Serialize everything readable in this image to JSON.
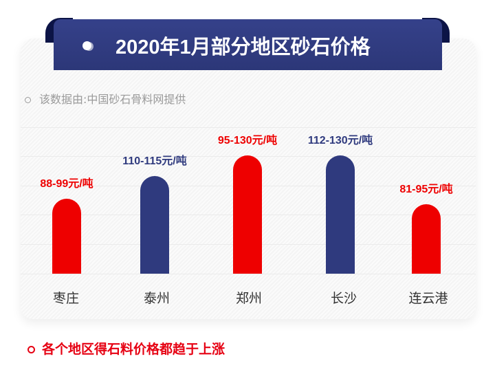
{
  "title": "2020年1月部分地区砂石价格",
  "source_note": "该数据由:中国砂石骨料网提供",
  "footer_note": "各个地区得石料价格都趋于上涨",
  "colors": {
    "red": "#ee0000",
    "navy": "#2f3a7e"
  },
  "chart_data": {
    "type": "bar",
    "title": "2020年1月部分地区砂石价格",
    "categories": [
      "枣庄",
      "泰州",
      "郑州",
      "长沙",
      "连云港"
    ],
    "unit": "元/吨",
    "ranges": [
      [
        88,
        99
      ],
      [
        110,
        115
      ],
      [
        95,
        130
      ],
      [
        112,
        130
      ],
      [
        81,
        95
      ]
    ],
    "labels": [
      "88-99元/吨",
      "110-115元/吨",
      "95-130元/吨",
      "112-130元/吨",
      "81-95元/吨"
    ],
    "bar_colors": [
      "#ee0000",
      "#2f3a7e",
      "#ee0000",
      "#2f3a7e",
      "#ee0000"
    ],
    "label_colors": [
      "#ee0000",
      "#2f3a7e",
      "#ee0000",
      "#2f3a7e",
      "#ee0000"
    ],
    "grid": true
  }
}
